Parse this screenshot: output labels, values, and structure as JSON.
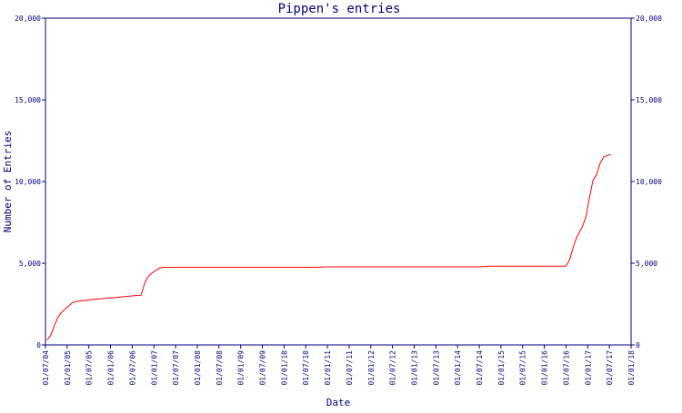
{
  "chart_data": {
    "type": "line",
    "title": "Pippen's entries",
    "xlabel": "Date",
    "ylabel": "Number of Entries",
    "ylim": [
      0,
      20000
    ],
    "xlim": [
      "2004-07-01",
      "2018-01-01"
    ],
    "y_ticks": [
      0,
      5000,
      10000,
      15000,
      20000
    ],
    "y_tick_labels": [
      "0",
      "5,000",
      "10,000",
      "15,000",
      "20,000"
    ],
    "x_tick_labels": [
      "01/07/04",
      "01/01/05",
      "01/07/05",
      "01/01/06",
      "01/07/06",
      "01/01/07",
      "01/07/07",
      "01/01/08",
      "01/07/08",
      "01/01/09",
      "01/07/09",
      "01/01/10",
      "01/07/10",
      "01/01/11",
      "01/07/11",
      "01/01/12",
      "01/07/12",
      "01/01/13",
      "01/07/13",
      "01/01/14",
      "01/07/14",
      "01/01/15",
      "01/07/15",
      "01/01/16",
      "01/07/16",
      "01/01/17",
      "01/07/17",
      "01/01/18"
    ],
    "grid": false,
    "colors": {
      "line": "#ff0000",
      "axis": "#000080",
      "text": "#000080"
    },
    "series": [
      {
        "x": [
          "2004-07-15",
          "2004-08-15",
          "2004-09-15",
          "2004-10-15",
          "2004-11-15",
          "2004-12-15",
          "2005-01-15",
          "2005-02-15",
          "2005-03-15",
          "2005-05-01",
          "2005-07-01",
          "2005-10-01",
          "2006-01-01",
          "2006-04-01",
          "2006-07-01",
          "2006-09-15",
          "2006-10-15",
          "2006-11-15",
          "2006-12-15",
          "2007-01-15",
          "2007-02-15",
          "2007-03-15",
          "2007-06-01",
          "2008-01-01",
          "2009-01-01",
          "2010-01-01",
          "2010-10-01",
          "2011-01-01",
          "2012-01-01",
          "2013-01-01",
          "2014-01-01",
          "2014-07-01",
          "2014-10-01",
          "2015-01-01",
          "2016-01-01",
          "2016-07-01",
          "2016-08-01",
          "2016-09-01",
          "2016-10-01",
          "2016-11-15",
          "2016-12-15",
          "2017-01-15",
          "2017-02-15",
          "2017-03-15",
          "2017-04-15",
          "2017-05-15",
          "2017-06-15",
          "2017-07-15"
        ],
        "y": [
          300,
          600,
          1200,
          1700,
          2000,
          2200,
          2400,
          2600,
          2650,
          2700,
          2750,
          2820,
          2880,
          2940,
          3000,
          3050,
          3800,
          4200,
          4400,
          4550,
          4700,
          4750,
          4750,
          4750,
          4750,
          4750,
          4750,
          4780,
          4780,
          4780,
          4780,
          4780,
          4820,
          4820,
          4820,
          4820,
          5200,
          6000,
          6600,
          7200,
          7800,
          9000,
          10100,
          10400,
          11100,
          11500,
          11600,
          11650
        ]
      }
    ]
  }
}
